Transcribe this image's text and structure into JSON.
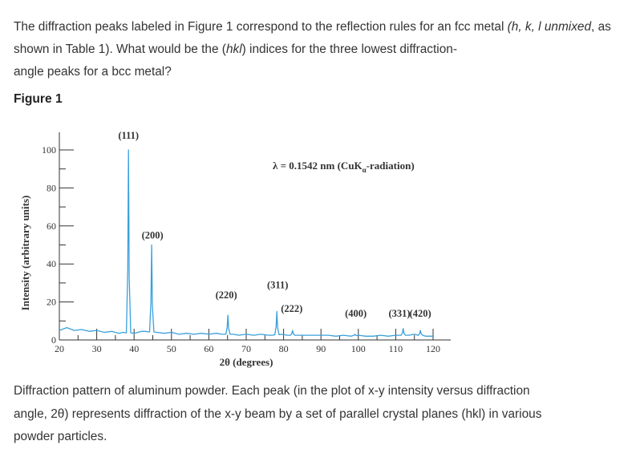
{
  "question": {
    "part1": "The diffraction peaks labeled in Figure 1 correspond to the reflection rules for an fcc metal ",
    "hkl_italic": "(h, k, l",
    "line2_lead": "unmixed",
    "part2": ", as shown in Table 1). What would be the (",
    "hkl2": "hkl",
    "part3": ") indices for the three lowest diffraction-",
    "line3": "angle peaks for a bcc metal?"
  },
  "figure_heading": "Figure 1",
  "caption": {
    "line1": "Diffraction pattern of aluminum powder. Each peak (in the plot of x-y intensity versus diffraction",
    "line2": "angle, 2θ) represents diffraction of the x-y beam by a set of parallel crystal planes (hkl) in various",
    "line3": "powder particles."
  },
  "chart_data": {
    "type": "line",
    "ylabel": "Intensity (arbitrary units)",
    "xlabel": "2θ (degrees)",
    "xlim": [
      20,
      120
    ],
    "ylim": [
      0,
      100
    ],
    "x_ticks": [
      20,
      30,
      40,
      50,
      60,
      70,
      80,
      90,
      100,
      110,
      120
    ],
    "y_ticks": [
      0,
      20,
      40,
      60,
      80,
      100
    ],
    "annotation": {
      "prefix": "λ = 0.1542 nm (CuK",
      "subscript": "α",
      "suffix": "-radiation)"
    },
    "peaks": [
      {
        "label": "(111)",
        "x": 38.5,
        "y": 100
      },
      {
        "label": "(200)",
        "x": 44.7,
        "y": 50
      },
      {
        "label": "(220)",
        "x": 65.1,
        "y": 13
      },
      {
        "label": "(311)",
        "x": 78.2,
        "y": 15
      },
      {
        "label": "(222)",
        "x": 82.4,
        "y": 5
      },
      {
        "label": "(400)",
        "x": 99.1,
        "y": 3
      },
      {
        "label": "(331)",
        "x": 112.0,
        "y": 6
      },
      {
        "label": "(420)",
        "x": 116.6,
        "y": 5
      }
    ],
    "background_x": [
      20,
      22,
      24,
      26,
      28,
      30,
      32,
      34,
      36,
      37,
      40,
      42,
      43,
      46,
      48,
      50,
      52,
      54,
      56,
      58,
      60,
      62,
      63.5,
      66.5,
      68,
      70,
      72,
      74,
      76,
      77,
      79.5,
      81,
      83.5,
      85,
      88,
      90,
      92,
      94,
      96,
      98,
      100,
      102,
      104,
      106,
      108,
      110,
      113.5,
      115,
      118,
      120
    ],
    "background_y": [
      5,
      6.5,
      5,
      5.5,
      4.5,
      5,
      4,
      4.5,
      3.5,
      4,
      3.5,
      4.5,
      4.5,
      4,
      3.5,
      4,
      3,
      3.5,
      3,
      3.5,
      3,
      3.5,
      3,
      3,
      2.5,
      3,
      2.5,
      3,
      2.5,
      2.5,
      3,
      2.5,
      2.5,
      2.5,
      2.5,
      2.5,
      2.5,
      2,
      2.5,
      2,
      2.5,
      2,
      2,
      2.5,
      2,
      2.5,
      2.5,
      3,
      2,
      2
    ]
  }
}
